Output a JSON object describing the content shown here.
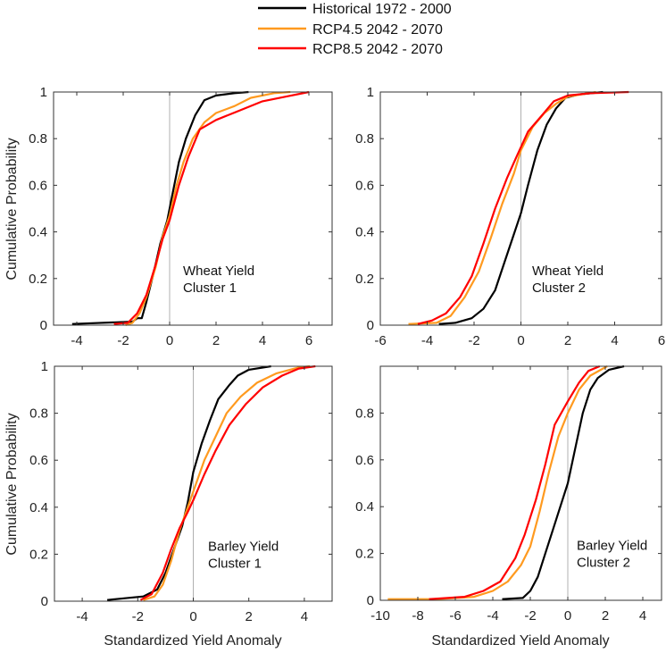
{
  "colors": {
    "historical": "#000000",
    "rcp45": "#ff9a1f",
    "rcp85": "#ff0000",
    "zero_line": "#b0b0b0",
    "axes": "#333333"
  },
  "legend": {
    "placement": "top-center",
    "entries": [
      "Historical 1972 - 2000",
      "RCP4.5 2042 - 2070",
      "RCP8.5 2042 - 2070"
    ]
  },
  "labels": {
    "ylabel": "Cumulative Probability",
    "xlabel": "Standardized Yield Anomaly"
  },
  "chart_data": [
    {
      "type": "line",
      "annotation": [
        "Wheat Yield",
        "Cluster 1"
      ],
      "xlim": [
        -5,
        7
      ],
      "ylim": [
        0,
        1
      ],
      "xticks": [
        -4,
        -2,
        0,
        2,
        4,
        6
      ],
      "yticks": [
        0,
        0.2,
        0.4,
        0.6,
        0.8,
        1
      ],
      "ytick_labels": [
        "0",
        "0.2",
        "0.4",
        "0.6",
        "0.8",
        "1"
      ],
      "series": [
        {
          "name": "Historical 1972 - 2000",
          "points": [
            [
              -4.2,
              0.005
            ],
            [
              -1.6,
              0.015
            ],
            [
              -1.4,
              0.03
            ],
            [
              -1.2,
              0.03
            ],
            [
              -1,
              0.1
            ],
            [
              -0.7,
              0.22
            ],
            [
              -0.4,
              0.35
            ],
            [
              -0.1,
              0.45
            ],
            [
              0.1,
              0.55
            ],
            [
              0.4,
              0.7
            ],
            [
              0.7,
              0.8
            ],
            [
              1.1,
              0.9
            ],
            [
              1.5,
              0.965
            ],
            [
              2,
              0.985
            ],
            [
              2.8,
              0.995
            ],
            [
              3.4,
              1
            ]
          ]
        },
        {
          "name": "RCP4.5 2042 - 2070",
          "points": [
            [
              -1.9,
              0
            ],
            [
              -1.6,
              0.01
            ],
            [
              -1.3,
              0.05
            ],
            [
              -1,
              0.12
            ],
            [
              -0.6,
              0.25
            ],
            [
              -0.3,
              0.38
            ],
            [
              0,
              0.47
            ],
            [
              0.3,
              0.6
            ],
            [
              0.6,
              0.7
            ],
            [
              1,
              0.8
            ],
            [
              1.5,
              0.87
            ],
            [
              2,
              0.91
            ],
            [
              2.8,
              0.94
            ],
            [
              3.5,
              0.975
            ],
            [
              4.5,
              0.995
            ],
            [
              5.2,
              1
            ]
          ]
        },
        {
          "name": "RCP8.5 2042 - 2070",
          "points": [
            [
              -2.4,
              0.005
            ],
            [
              -1.8,
              0.01
            ],
            [
              -1.4,
              0.05
            ],
            [
              -1,
              0.13
            ],
            [
              -0.6,
              0.26
            ],
            [
              -0.3,
              0.37
            ],
            [
              0,
              0.45
            ],
            [
              0.4,
              0.6
            ],
            [
              0.8,
              0.72
            ],
            [
              1.3,
              0.84
            ],
            [
              2,
              0.88
            ],
            [
              3,
              0.92
            ],
            [
              4,
              0.96
            ],
            [
              5,
              0.98
            ],
            [
              6,
              1
            ]
          ]
        }
      ]
    },
    {
      "type": "line",
      "annotation": [
        "Wheat Yield",
        "Cluster 2"
      ],
      "xlim": [
        -6,
        6
      ],
      "ylim": [
        0,
        1
      ],
      "xticks": [
        -6,
        -4,
        -2,
        0,
        2,
        4,
        6
      ],
      "yticks": [
        0,
        0.2,
        0.4,
        0.6,
        0.8,
        1
      ],
      "ytick_labels": [
        "0",
        "0.2",
        "0.4",
        "0.6",
        "0.8",
        "1"
      ],
      "series": [
        {
          "name": "Historical 1972 - 2000",
          "points": [
            [
              -3.5,
              0.005
            ],
            [
              -2.8,
              0.01
            ],
            [
              -2.1,
              0.03
            ],
            [
              -1.6,
              0.07
            ],
            [
              -1.1,
              0.15
            ],
            [
              -0.7,
              0.27
            ],
            [
              -0.4,
              0.36
            ],
            [
              0,
              0.48
            ],
            [
              0.3,
              0.6
            ],
            [
              0.7,
              0.75
            ],
            [
              1.1,
              0.86
            ],
            [
              1.5,
              0.93
            ],
            [
              1.9,
              0.975
            ],
            [
              2.5,
              0.99
            ],
            [
              3.5,
              1
            ]
          ]
        },
        {
          "name": "RCP4.5 2042 - 2070",
          "points": [
            [
              -4.8,
              0.005
            ],
            [
              -3.6,
              0.01
            ],
            [
              -3,
              0.04
            ],
            [
              -2.4,
              0.12
            ],
            [
              -1.8,
              0.23
            ],
            [
              -1.3,
              0.37
            ],
            [
              -0.8,
              0.52
            ],
            [
              -0.3,
              0.65
            ],
            [
              0,
              0.75
            ],
            [
              0.5,
              0.85
            ],
            [
              1,
              0.91
            ],
            [
              1.5,
              0.95
            ],
            [
              2,
              0.98
            ],
            [
              3.2,
              1
            ]
          ]
        },
        {
          "name": "RCP8.5 2042 - 2070",
          "points": [
            [
              -4.4,
              0.005
            ],
            [
              -3.8,
              0.02
            ],
            [
              -3.2,
              0.05
            ],
            [
              -2.6,
              0.12
            ],
            [
              -2.1,
              0.21
            ],
            [
              -1.6,
              0.35
            ],
            [
              -1.1,
              0.5
            ],
            [
              -0.6,
              0.63
            ],
            [
              -0.2,
              0.72
            ],
            [
              0.3,
              0.83
            ],
            [
              0.9,
              0.9
            ],
            [
              1.4,
              0.96
            ],
            [
              2,
              0.985
            ],
            [
              3,
              0.995
            ],
            [
              4.6,
              1
            ]
          ]
        }
      ]
    },
    {
      "type": "line",
      "annotation": [
        "Barley Yield",
        "Cluster 1"
      ],
      "xlim": [
        -5,
        5
      ],
      "ylim": [
        0,
        1
      ],
      "xticks": [
        -4,
        -2,
        0,
        2,
        4
      ],
      "yticks": [
        0,
        0.2,
        0.4,
        0.6,
        0.8,
        1
      ],
      "ytick_labels": [
        "0",
        "0.2",
        "0.4",
        "0.6",
        "0.8",
        "1"
      ],
      "series": [
        {
          "name": "Historical 1972 - 2000",
          "points": [
            [
              -3.1,
              0.005
            ],
            [
              -2.5,
              0.012
            ],
            [
              -1.8,
              0.02
            ],
            [
              -1.3,
              0.05
            ],
            [
              -1,
              0.12
            ],
            [
              -0.7,
              0.22
            ],
            [
              -0.4,
              0.32
            ],
            [
              -0.2,
              0.42
            ],
            [
              0,
              0.55
            ],
            [
              0.3,
              0.67
            ],
            [
              0.6,
              0.77
            ],
            [
              0.9,
              0.86
            ],
            [
              1.3,
              0.92
            ],
            [
              1.6,
              0.96
            ],
            [
              2,
              0.985
            ],
            [
              2.8,
              1
            ]
          ]
        },
        {
          "name": "RCP4.5 2042 - 2070",
          "points": [
            [
              -1.8,
              0.005
            ],
            [
              -1.4,
              0.02
            ],
            [
              -1.1,
              0.07
            ],
            [
              -0.8,
              0.17
            ],
            [
              -0.5,
              0.3
            ],
            [
              -0.2,
              0.4
            ],
            [
              0.1,
              0.5
            ],
            [
              0.4,
              0.6
            ],
            [
              0.8,
              0.7
            ],
            [
              1.2,
              0.8
            ],
            [
              1.7,
              0.87
            ],
            [
              2.3,
              0.93
            ],
            [
              3,
              0.97
            ],
            [
              3.8,
              0.995
            ],
            [
              4.2,
              1
            ]
          ]
        },
        {
          "name": "RCP8.5 2042 - 2070",
          "points": [
            [
              -1.9,
              0.005
            ],
            [
              -1.5,
              0.03
            ],
            [
              -1.1,
              0.12
            ],
            [
              -0.8,
              0.22
            ],
            [
              -0.5,
              0.31
            ],
            [
              -0.2,
              0.38
            ],
            [
              0,
              0.43
            ],
            [
              0.4,
              0.54
            ],
            [
              0.8,
              0.64
            ],
            [
              1.3,
              0.75
            ],
            [
              1.9,
              0.84
            ],
            [
              2.5,
              0.91
            ],
            [
              3.2,
              0.96
            ],
            [
              3.8,
              0.99
            ],
            [
              4.4,
              1
            ]
          ]
        }
      ]
    },
    {
      "type": "line",
      "annotation": [
        "Barley Yield",
        "Cluster 2"
      ],
      "xlim": [
        -10,
        5
      ],
      "ylim": [
        0,
        1
      ],
      "xticks": [
        -10,
        -8,
        -6,
        -4,
        -2,
        0,
        2,
        4
      ],
      "yticks": [
        0,
        0.2,
        0.4,
        0.6,
        0.8,
        1
      ],
      "ytick_labels": [
        "0",
        "0.2",
        "0.4",
        "0.6",
        "0.8",
        ""
      ],
      "series": [
        {
          "name": "Historical 1972 - 2000",
          "points": [
            [
              -3.5,
              0.005
            ],
            [
              -2.4,
              0.01
            ],
            [
              -2,
              0.04
            ],
            [
              -1.6,
              0.1
            ],
            [
              -1.2,
              0.2
            ],
            [
              -0.8,
              0.3
            ],
            [
              -0.4,
              0.4
            ],
            [
              0,
              0.5
            ],
            [
              0.4,
              0.65
            ],
            [
              0.8,
              0.8
            ],
            [
              1.2,
              0.9
            ],
            [
              1.6,
              0.95
            ],
            [
              2.2,
              0.985
            ],
            [
              3,
              1
            ]
          ]
        },
        {
          "name": "RCP4.5 2042 - 2070",
          "points": [
            [
              -9.6,
              0.005
            ],
            [
              -7,
              0.005
            ],
            [
              -5,
              0.015
            ],
            [
              -4,
              0.04
            ],
            [
              -3.2,
              0.08
            ],
            [
              -2.5,
              0.15
            ],
            [
              -2,
              0.23
            ],
            [
              -1.5,
              0.38
            ],
            [
              -1,
              0.55
            ],
            [
              -0.5,
              0.7
            ],
            [
              0,
              0.8
            ],
            [
              0.6,
              0.9
            ],
            [
              1.2,
              0.96
            ],
            [
              2.1,
              1
            ]
          ]
        },
        {
          "name": "RCP8.5 2042 - 2070",
          "points": [
            [
              -7.4,
              0.005
            ],
            [
              -5.5,
              0.015
            ],
            [
              -4.5,
              0.04
            ],
            [
              -3.6,
              0.08
            ],
            [
              -2.8,
              0.18
            ],
            [
              -2.3,
              0.28
            ],
            [
              -1.7,
              0.43
            ],
            [
              -1.2,
              0.58
            ],
            [
              -0.7,
              0.75
            ],
            [
              0,
              0.85
            ],
            [
              0.6,
              0.93
            ],
            [
              1.1,
              0.98
            ],
            [
              1.7,
              1
            ]
          ]
        }
      ]
    }
  ]
}
